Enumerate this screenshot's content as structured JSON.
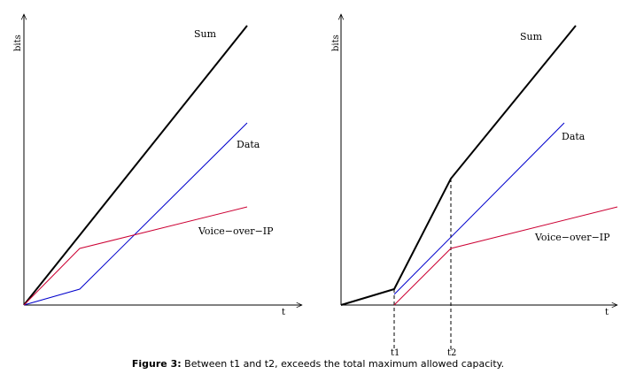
{
  "left_panel": {
    "y_axis_label": "bits",
    "x_axis_label": "t",
    "labels": {
      "sum": "Sum",
      "data": "Data",
      "voip": "Voice−over−IP"
    }
  },
  "right_panel": {
    "y_axis_label": "bits",
    "x_axis_label": "t",
    "labels": {
      "sum": "Sum",
      "data": "Data",
      "voip": "Voice−over−IP"
    },
    "markers": {
      "t1": "t1",
      "t2": "t2"
    }
  },
  "colors": {
    "sum": "#000000",
    "data": "#0000cc",
    "voip": "#cc0033"
  },
  "caption": {
    "label": "Figure 3:",
    "text": " Between t1 and t2, exceeds the total maximum allowed capacity."
  }
}
